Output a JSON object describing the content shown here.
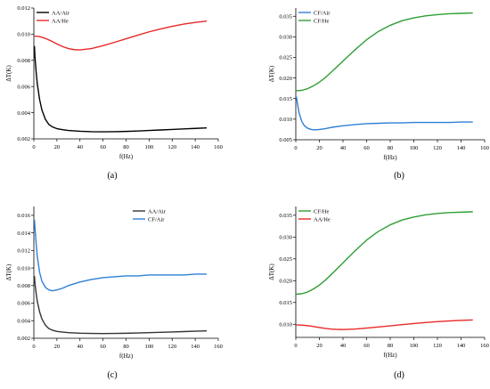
{
  "chart_data": [
    {
      "type": "line",
      "panel_label": "(a)",
      "xlabel": "f(Hz)",
      "ylabel": "ΔT(K)",
      "xlim": [
        0,
        160
      ],
      "ylim": [
        0.002,
        0.012
      ],
      "x_ticks": [
        "0",
        "20",
        "40",
        "60",
        "80",
        "100",
        "120",
        "140",
        "160"
      ],
      "y_ticks": [
        "0.002",
        "0.004",
        "0.006",
        "0.008",
        "0.010",
        "0.012"
      ],
      "legend_position": "top-left",
      "series": [
        {
          "name": "AA/Air",
          "color": "#000000",
          "x": [
            0.5,
            1,
            2,
            3,
            5,
            7,
            10,
            13,
            16,
            20,
            25,
            30,
            40,
            50,
            60,
            70,
            80,
            90,
            100,
            110,
            120,
            130,
            140,
            150
          ],
          "y": [
            0.0091,
            0.0082,
            0.0071,
            0.0062,
            0.005,
            0.0042,
            0.0035,
            0.0031,
            0.00292,
            0.00278,
            0.0027,
            0.00264,
            0.00258,
            0.00255,
            0.00254,
            0.00255,
            0.00257,
            0.0026,
            0.00264,
            0.00268,
            0.00272,
            0.00276,
            0.0028,
            0.00284
          ]
        },
        {
          "name": "AA/He",
          "color": "#e8292a",
          "x": [
            0.5,
            5,
            10,
            15,
            20,
            25,
            30,
            35,
            40,
            50,
            60,
            70,
            80,
            90,
            100,
            110,
            120,
            130,
            140,
            150
          ],
          "y": [
            0.00985,
            0.00982,
            0.00968,
            0.00948,
            0.00925,
            0.00905,
            0.0089,
            0.00882,
            0.0088,
            0.0089,
            0.00912,
            0.00938,
            0.00965,
            0.00992,
            0.01018,
            0.0104,
            0.0106,
            0.01077,
            0.0109,
            0.011
          ]
        }
      ]
    },
    {
      "type": "line",
      "panel_label": "(b)",
      "xlabel": "f(Hz)",
      "ylabel": "ΔT(K)",
      "xlim": [
        0,
        160
      ],
      "ylim": [
        0.005,
        0.037
      ],
      "x_ticks": [
        "0",
        "20",
        "40",
        "60",
        "80",
        "100",
        "120",
        "140",
        "160"
      ],
      "y_ticks": [
        "0.005",
        "0.010",
        "0.015",
        "0.020",
        "0.025",
        "0.030",
        "0.035"
      ],
      "legend_position": "top-left",
      "series": [
        {
          "name": "CF/Air",
          "color": "#2f7fd6",
          "x": [
            0.5,
            1,
            2,
            3,
            5,
            7,
            10,
            13,
            16,
            20,
            25,
            30,
            40,
            50,
            60,
            70,
            80,
            90,
            100,
            110,
            120,
            130,
            140,
            150
          ],
          "y": [
            0.0155,
            0.0145,
            0.0128,
            0.0113,
            0.0095,
            0.0085,
            0.0078,
            0.0075,
            0.0074,
            0.0075,
            0.0077,
            0.008,
            0.0084,
            0.0087,
            0.0089,
            0.009,
            0.0091,
            0.0091,
            0.0092,
            0.0092,
            0.0092,
            0.0092,
            0.0093,
            0.0093
          ]
        },
        {
          "name": "CF/He",
          "color": "#2f9e35",
          "x": [
            0.5,
            5,
            10,
            15,
            20,
            25,
            30,
            40,
            50,
            60,
            70,
            80,
            90,
            100,
            110,
            120,
            130,
            140,
            150
          ],
          "y": [
            0.0169,
            0.017,
            0.0174,
            0.0181,
            0.019,
            0.0201,
            0.0214,
            0.0241,
            0.0268,
            0.0293,
            0.0313,
            0.0328,
            0.0339,
            0.0346,
            0.0351,
            0.0354,
            0.0356,
            0.0357,
            0.0358
          ]
        }
      ]
    },
    {
      "type": "line",
      "panel_label": "(c)",
      "xlabel": "f(Hz)",
      "ylabel": "ΔT(K)",
      "xlim": [
        0,
        160
      ],
      "ylim": [
        0.002,
        0.017
      ],
      "x_ticks": [
        "0",
        "20",
        "40",
        "60",
        "80",
        "100",
        "120",
        "140",
        "160"
      ],
      "y_ticks": [
        "0.002",
        "0.004",
        "0.006",
        "0.008",
        "0.010",
        "0.012",
        "0.014",
        "0.016"
      ],
      "legend_position": "top-right",
      "series": [
        {
          "name": "AA/Air",
          "color": "#333333",
          "x": [
            0.5,
            1,
            2,
            3,
            5,
            7,
            10,
            13,
            16,
            20,
            25,
            30,
            40,
            50,
            60,
            70,
            80,
            90,
            100,
            110,
            120,
            130,
            140,
            150
          ],
          "y": [
            0.0091,
            0.0082,
            0.0071,
            0.0062,
            0.005,
            0.0042,
            0.0035,
            0.0031,
            0.00292,
            0.00278,
            0.0027,
            0.00264,
            0.00258,
            0.00255,
            0.00254,
            0.00255,
            0.00257,
            0.0026,
            0.00264,
            0.00268,
            0.00272,
            0.00276,
            0.0028,
            0.00284
          ]
        },
        {
          "name": "CF/Air",
          "color": "#2f7fd6",
          "x": [
            0.5,
            1,
            2,
            3,
            5,
            7,
            10,
            13,
            16,
            20,
            25,
            30,
            40,
            50,
            60,
            70,
            80,
            90,
            100,
            110,
            120,
            130,
            140,
            150
          ],
          "y": [
            0.0155,
            0.0145,
            0.0128,
            0.0113,
            0.0095,
            0.0085,
            0.0078,
            0.0075,
            0.0074,
            0.0075,
            0.0077,
            0.008,
            0.0084,
            0.0087,
            0.0089,
            0.009,
            0.0091,
            0.0091,
            0.0092,
            0.0092,
            0.0092,
            0.0092,
            0.0093,
            0.0093
          ]
        }
      ]
    },
    {
      "type": "line",
      "panel_label": "(d)",
      "xlabel": "f(Hz)",
      "ylabel": "ΔT(K)",
      "xlim": [
        0,
        160
      ],
      "ylim": [
        0.007,
        0.037
      ],
      "x_ticks": [
        "0",
        "20",
        "40",
        "60",
        "80",
        "100",
        "120",
        "140",
        "160"
      ],
      "y_ticks": [
        "0.010",
        "0.015",
        "0.020",
        "0.025",
        "0.030",
        "0.035"
      ],
      "legend_position": "top-left",
      "series": [
        {
          "name": "CF/He",
          "color": "#2f9e35",
          "x": [
            0.5,
            5,
            10,
            15,
            20,
            25,
            30,
            40,
            50,
            60,
            70,
            80,
            90,
            100,
            110,
            120,
            130,
            140,
            150
          ],
          "y": [
            0.0169,
            0.017,
            0.0174,
            0.0181,
            0.019,
            0.0201,
            0.0214,
            0.0241,
            0.0268,
            0.0293,
            0.0313,
            0.0328,
            0.0339,
            0.0346,
            0.0351,
            0.0354,
            0.0356,
            0.0357,
            0.0358
          ]
        },
        {
          "name": "AA/He",
          "color": "#e8292a",
          "x": [
            0.5,
            5,
            10,
            15,
            20,
            25,
            30,
            35,
            40,
            50,
            60,
            70,
            80,
            90,
            100,
            110,
            120,
            130,
            140,
            150
          ],
          "y": [
            0.00985,
            0.00982,
            0.00968,
            0.00948,
            0.00925,
            0.00905,
            0.0089,
            0.00882,
            0.0088,
            0.0089,
            0.00912,
            0.00938,
            0.00965,
            0.00992,
            0.01018,
            0.0104,
            0.0106,
            0.01077,
            0.0109,
            0.011
          ]
        }
      ]
    }
  ]
}
